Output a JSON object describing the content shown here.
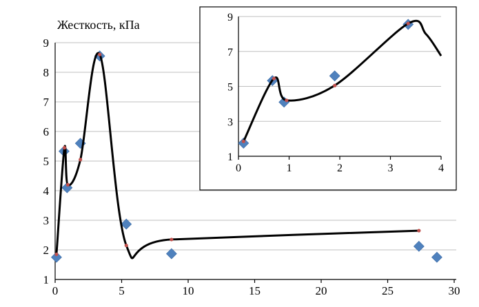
{
  "chart_data": [
    {
      "type": "scatter",
      "title": "",
      "ylabel": "Жесткость, кПа",
      "xlabel": "",
      "xlim": [
        0,
        30
      ],
      "ylim": [
        1,
        9
      ],
      "x_ticks": [
        "0",
        "5",
        "10",
        "15",
        "20",
        "25",
        "30"
      ],
      "y_ticks": [
        "1",
        "2",
        "3",
        "4",
        "5",
        "6",
        "7",
        "8",
        "9"
      ],
      "grid": "horizontal",
      "series": [
        {
          "kind": "marker-diamond",
          "color": "#4f81bd",
          "points": [
            [
              0.1,
              1.75
            ],
            [
              0.67,
              5.33
            ],
            [
              0.9,
              4.1
            ],
            [
              1.9,
              5.6
            ],
            [
              3.35,
              8.55
            ],
            [
              5.35,
              2.87
            ],
            [
              8.75,
              1.87
            ],
            [
              27.35,
              2.12
            ],
            [
              28.7,
              1.75
            ]
          ]
        },
        {
          "kind": "line-with-points",
          "color": "#c0504d",
          "line_color": "#000000",
          "points": [
            [
              0.1,
              1.85
            ],
            [
              0.7,
              5.45
            ],
            [
              0.95,
              4.2
            ],
            [
              1.9,
              5.05
            ],
            [
              3.35,
              8.6
            ],
            [
              5.35,
              2.15
            ],
            [
              8.75,
              2.35
            ],
            [
              27.35,
              2.65
            ]
          ]
        }
      ]
    },
    {
      "type": "scatter",
      "title": "",
      "ylabel": "",
      "xlabel": "",
      "xlim": [
        0,
        4
      ],
      "ylim": [
        1,
        9
      ],
      "x_ticks": [
        "0",
        "1",
        "2",
        "3",
        "4"
      ],
      "y_ticks": [
        "1",
        "3",
        "5",
        "7",
        "9"
      ],
      "grid": "horizontal",
      "series": [
        {
          "kind": "marker-diamond",
          "color": "#4f81bd",
          "points": [
            [
              0.1,
              1.75
            ],
            [
              0.67,
              5.33
            ],
            [
              0.9,
              4.1
            ],
            [
              1.9,
              5.6
            ],
            [
              3.35,
              8.55
            ]
          ]
        },
        {
          "kind": "line-with-points",
          "color": "#c0504d",
          "line_color": "#000000",
          "points": [
            [
              0.1,
              1.85
            ],
            [
              0.7,
              5.45
            ],
            [
              0.95,
              4.2
            ],
            [
              1.9,
              5.05
            ],
            [
              3.35,
              8.6
            ]
          ],
          "curve_extension": [
            [
              3.7,
              8.0
            ],
            [
              4.0,
              6.75
            ]
          ]
        }
      ]
    }
  ]
}
